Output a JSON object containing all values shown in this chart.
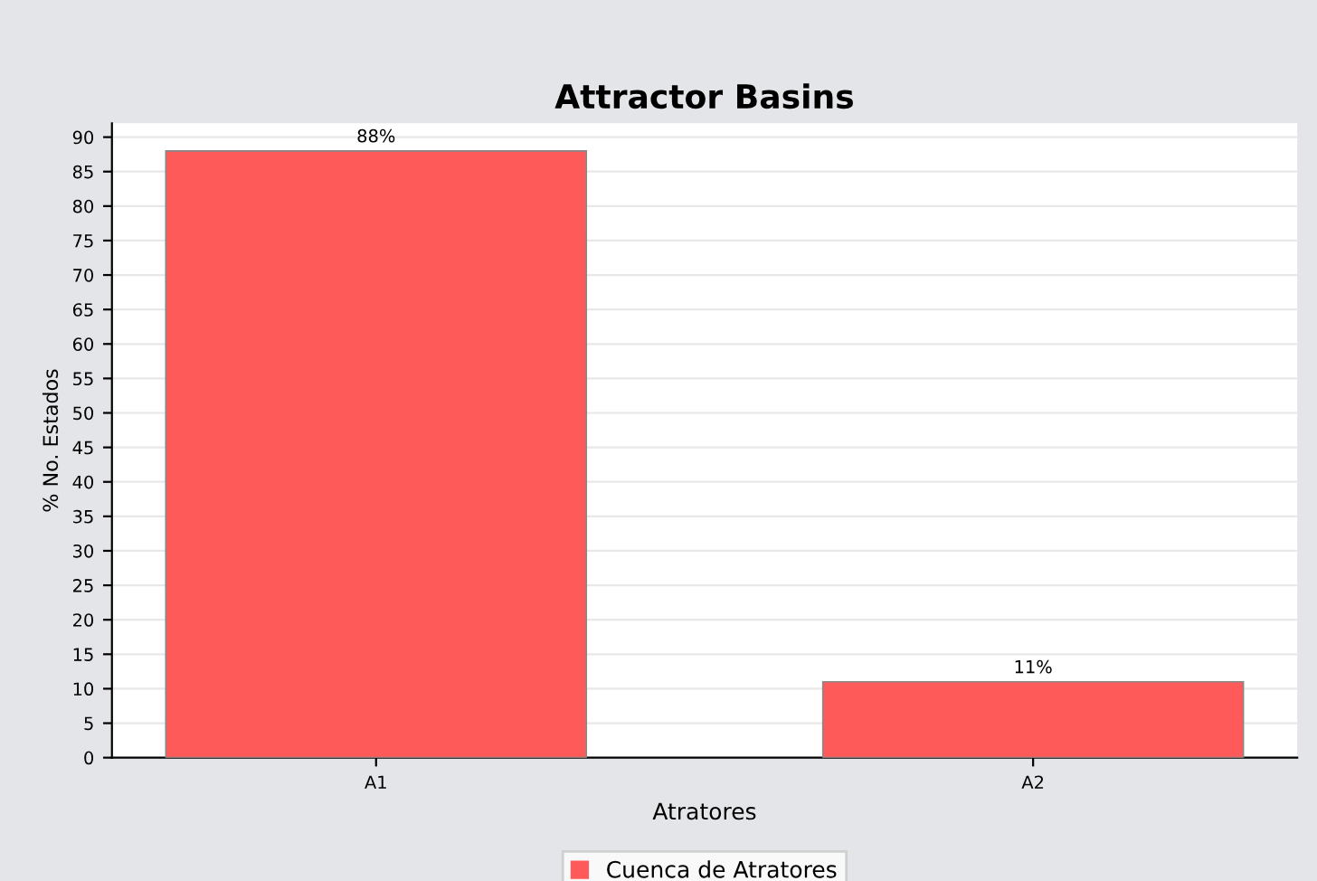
{
  "chart_data": {
    "type": "bar",
    "title": "Attractor Basins",
    "xlabel": "Atratores",
    "ylabel": "% No. Estados",
    "categories": [
      "A1",
      "A2"
    ],
    "series": [
      {
        "name": "Cuenca de Atratores",
        "color": "#ff5a5a",
        "values": [
          88,
          11
        ],
        "value_labels": [
          "88%",
          "11%"
        ]
      }
    ],
    "ylim": [
      0,
      92
    ],
    "yticks": [
      0,
      5,
      10,
      15,
      20,
      25,
      30,
      35,
      40,
      45,
      50,
      55,
      60,
      65,
      70,
      75,
      80,
      85,
      90
    ],
    "grid": "y",
    "legend": "bottom"
  }
}
